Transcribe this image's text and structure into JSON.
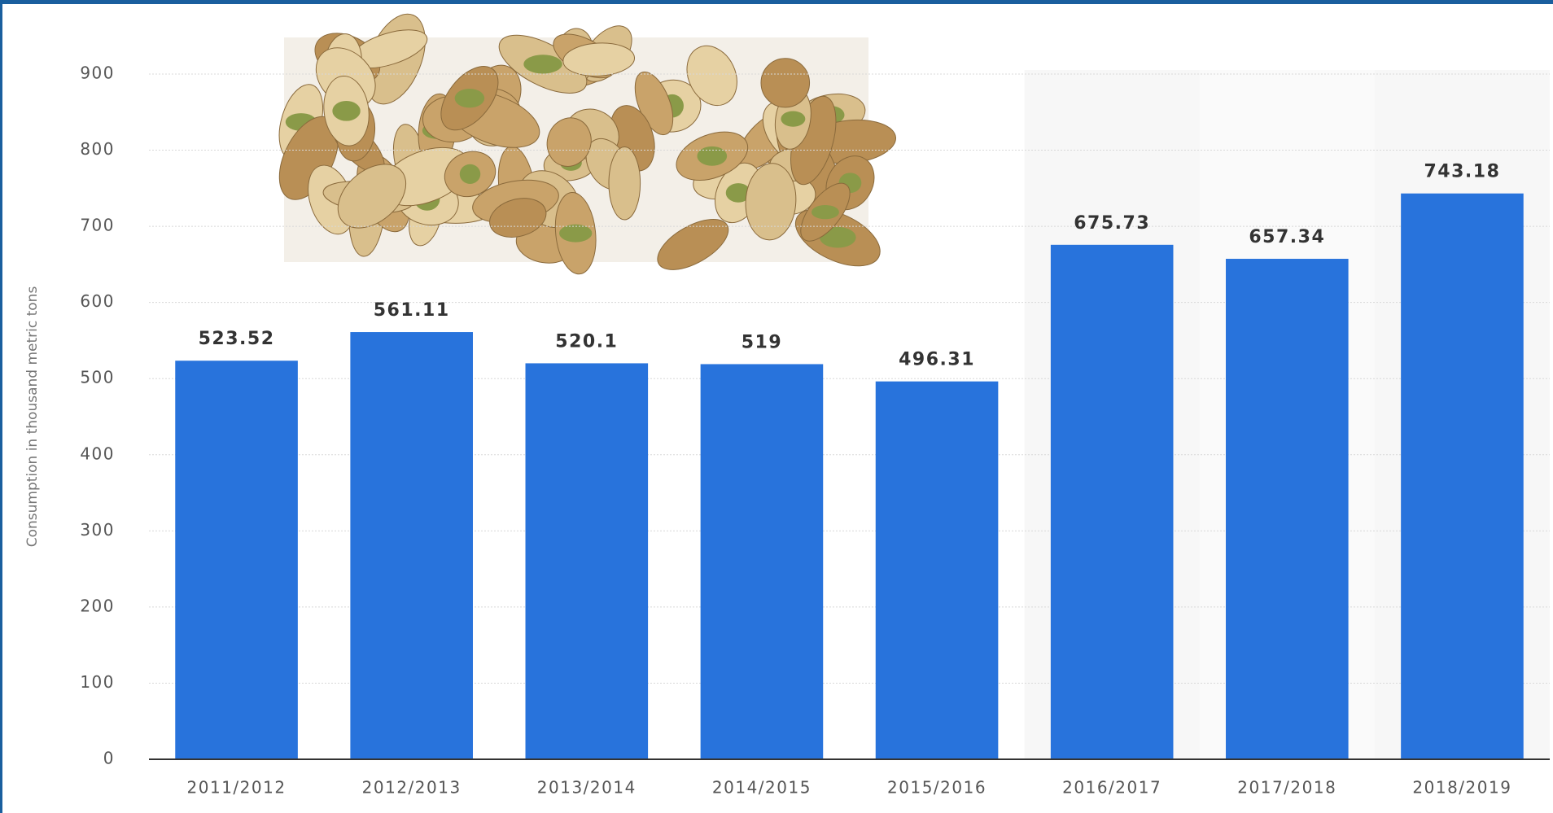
{
  "chart_data": {
    "type": "bar",
    "y_label": "Consumption in thousand metric tons",
    "categories": [
      "2011/2012",
      "2012/2013",
      "2013/2014",
      "2014/2015",
      "2015/2016",
      "2016/2017",
      "2017/2018",
      "2018/2019"
    ],
    "values": [
      523.52,
      561.11,
      520.1,
      519,
      496.31,
      675.73,
      657.34,
      743.18
    ],
    "color": "#2873dc",
    "ylim": [
      0,
      900
    ],
    "yticks": [
      0,
      100,
      200,
      300,
      400,
      500,
      600,
      700,
      800,
      900
    ],
    "grid": true
  }
}
